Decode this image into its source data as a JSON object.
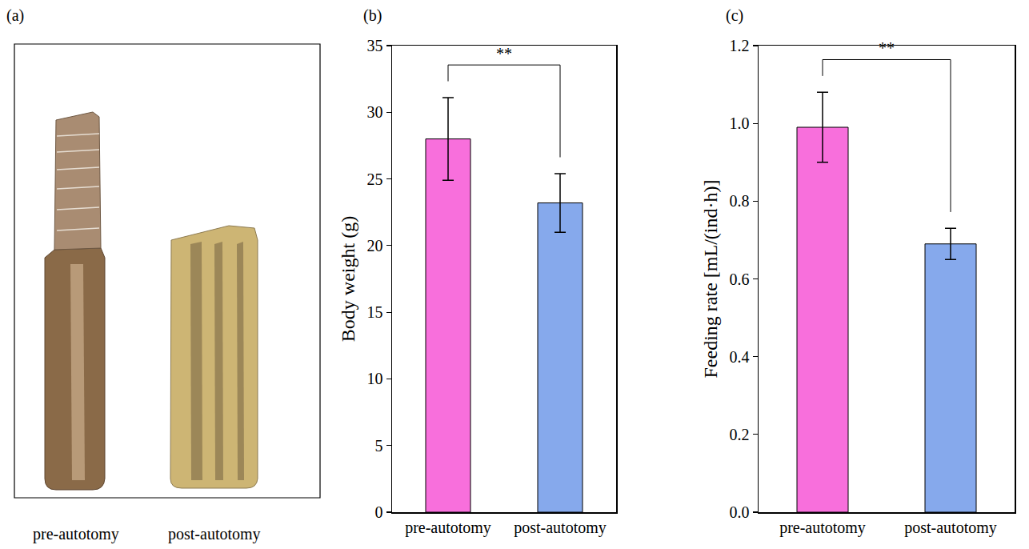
{
  "panel_a": {
    "panel": "(a)",
    "type": "image",
    "captions": [
      "pre-autotomy",
      "post-autotomy"
    ]
  },
  "chart_data": [
    {
      "panel": "(b)",
      "type": "bar",
      "categories": [
        "pre-autotomy",
        "post-autotomy"
      ],
      "values": [
        28.0,
        23.2
      ],
      "errors": [
        3.1,
        2.2
      ],
      "colors": [
        "#f86fdc",
        "#86a9ec"
      ],
      "ylabel": "Body weight (g)",
      "ylim": [
        0,
        35
      ],
      "yticks": [
        0,
        5,
        10,
        15,
        20,
        25,
        30,
        35
      ],
      "grid": false,
      "annotations": [
        {
          "text": "**",
          "between": [
            "pre-autotomy",
            "post-autotomy"
          ]
        }
      ]
    },
    {
      "panel": "(c)",
      "type": "bar",
      "categories": [
        "pre-autotomy",
        "post-autotomy"
      ],
      "values": [
        0.99,
        0.69
      ],
      "errors": [
        0.09,
        0.04
      ],
      "colors": [
        "#f86fdc",
        "#86a9ec"
      ],
      "ylabel": "Feeding rate [mL/(ind·h)]",
      "ylim": [
        0,
        1.2
      ],
      "yticks": [
        {
          "value": 0,
          "label": "0.0"
        },
        0.2,
        0.4,
        0.6,
        0.8,
        {
          "value": 1,
          "label": "1.0"
        },
        1.2
      ],
      "grid": false,
      "annotations": [
        {
          "text": "**",
          "between": [
            "pre-autotomy",
            "post-autotomy"
          ]
        }
      ]
    }
  ]
}
